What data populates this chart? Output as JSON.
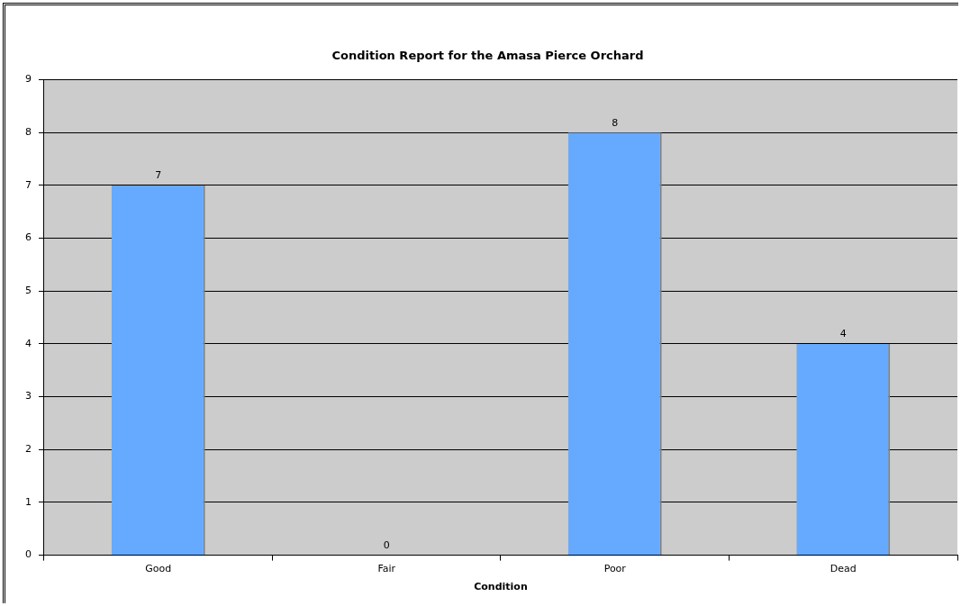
{
  "chart_data": {
    "type": "bar",
    "title": "Condition Report for the Amasa Pierce Orchard",
    "xlabel": "Condition",
    "categories": [
      "Good",
      "Fair",
      "Poor",
      "Dead"
    ],
    "values": [
      7,
      0,
      8,
      4
    ],
    "color": "#66aaff",
    "ylim": [
      0,
      9
    ],
    "yticks": [
      0,
      1,
      2,
      3,
      4,
      5,
      6,
      7,
      8,
      9
    ],
    "grid": "y",
    "legend": false,
    "data_labels": true
  }
}
